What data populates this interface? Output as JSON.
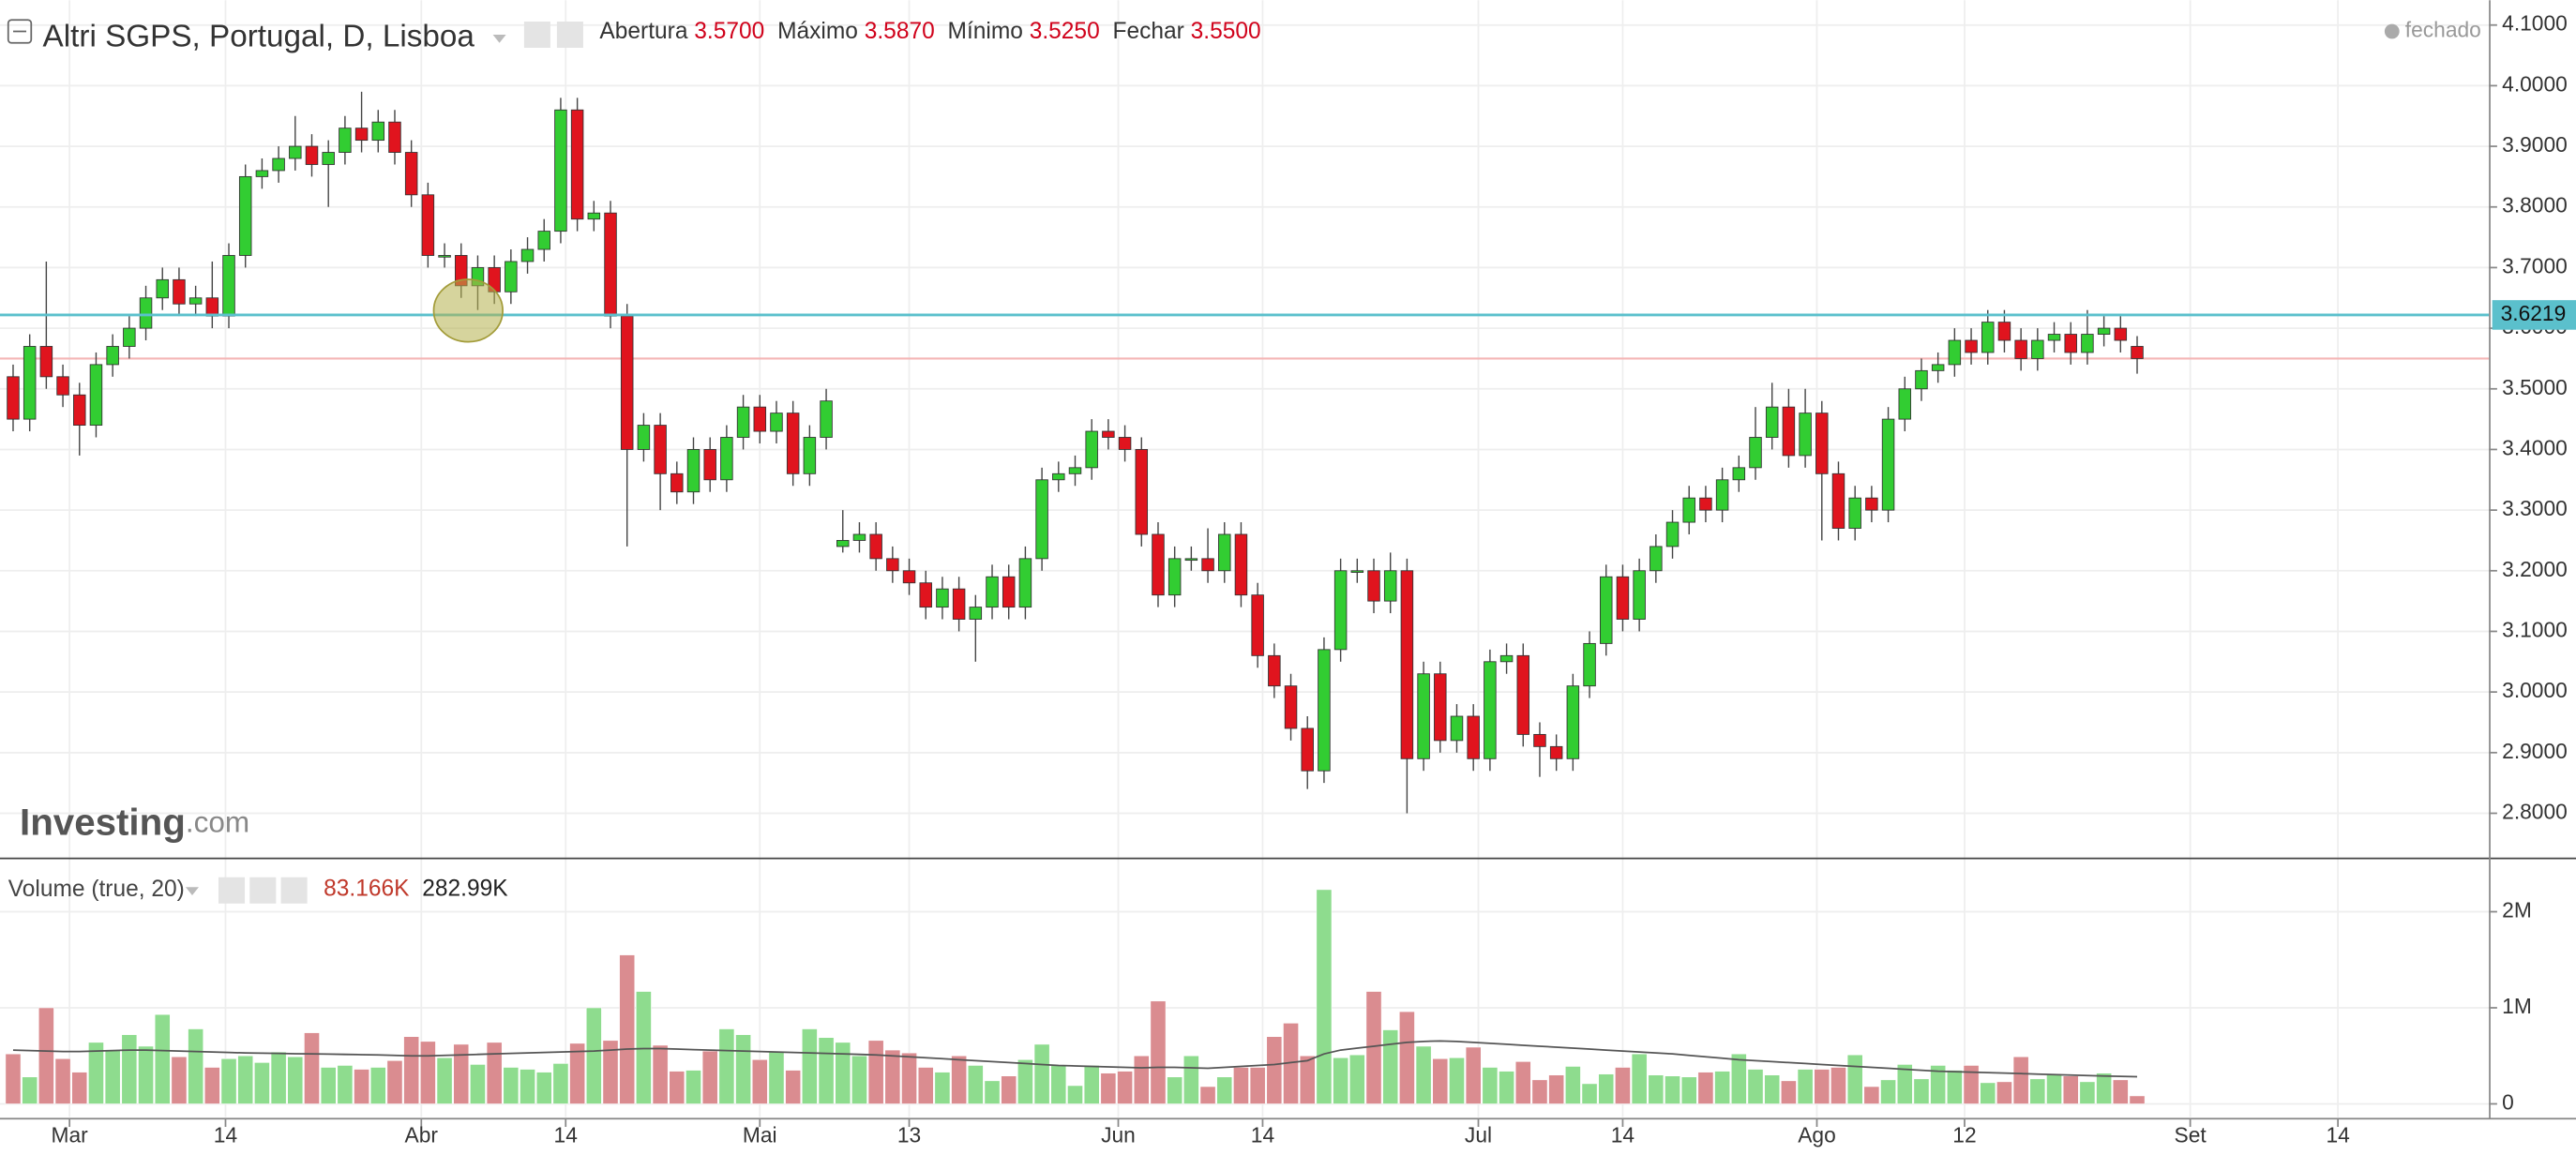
{
  "chart_data": [
    {
      "type": "candlestick",
      "title": "Altri SGPS, Portugal, D, Lisboa",
      "ohlc_labels": [
        "Abertura",
        "Máximo",
        "Mínimo",
        "Fechar"
      ],
      "ohlc_printed": [
        "3.5700",
        "3.5870",
        "3.5250",
        "3.5500"
      ],
      "status": "fechado",
      "watermark": [
        "Investing",
        ".com"
      ],
      "up_color": "#32cd32",
      "down_color": "#e0141e",
      "open": [
        3.52,
        3.45,
        3.57,
        3.52,
        3.49,
        3.44,
        3.54,
        3.57,
        3.6,
        3.65,
        3.68,
        3.64,
        3.65,
        3.62,
        3.72,
        3.85,
        3.86,
        3.88,
        3.9,
        3.87,
        3.89,
        3.93,
        3.91,
        3.94,
        3.89,
        3.82,
        3.72,
        3.72,
        3.67,
        3.7,
        3.66,
        3.71,
        3.73,
        3.76,
        3.96,
        3.78,
        3.79,
        3.62,
        3.4,
        3.44,
        3.36,
        3.33,
        3.4,
        3.35,
        3.42,
        3.47,
        3.43,
        3.46,
        3.36,
        3.42,
        3.24,
        3.25,
        3.26,
        3.22,
        3.2,
        3.18,
        3.14,
        3.17,
        3.12,
        3.14,
        3.19,
        3.14,
        3.22,
        3.35,
        3.36,
        3.37,
        3.43,
        3.42,
        3.4,
        3.26,
        3.16,
        3.22,
        3.22,
        3.2,
        3.26,
        3.16,
        3.06,
        3.01,
        2.94,
        2.87,
        3.07,
        3.2,
        3.2,
        3.15,
        3.2,
        2.89,
        3.03,
        2.92,
        2.96,
        2.89,
        3.05,
        3.06,
        2.93,
        2.91,
        2.89,
        3.01,
        3.08,
        3.19,
        3.12,
        3.2,
        3.24,
        3.28,
        3.32,
        3.3,
        3.35,
        3.37,
        3.42,
        3.47,
        3.39,
        3.46,
        3.36,
        3.27,
        3.32,
        3.3,
        3.45,
        3.5,
        3.53,
        3.54,
        3.58,
        3.56,
        3.61,
        3.58,
        3.55,
        3.58,
        3.59,
        3.56,
        3.59,
        3.6,
        3.57
      ],
      "high": [
        3.54,
        3.59,
        3.71,
        3.54,
        3.51,
        3.56,
        3.59,
        3.62,
        3.67,
        3.7,
        3.7,
        3.67,
        3.71,
        3.74,
        3.87,
        3.88,
        3.9,
        3.95,
        3.92,
        3.91,
        3.95,
        3.99,
        3.96,
        3.96,
        3.91,
        3.84,
        3.74,
        3.74,
        3.72,
        3.72,
        3.73,
        3.75,
        3.78,
        3.98,
        3.98,
        3.81,
        3.81,
        3.64,
        3.46,
        3.46,
        3.38,
        3.42,
        3.42,
        3.44,
        3.49,
        3.49,
        3.48,
        3.48,
        3.44,
        3.5,
        3.3,
        3.28,
        3.28,
        3.24,
        3.22,
        3.2,
        3.19,
        3.19,
        3.16,
        3.21,
        3.21,
        3.24,
        3.37,
        3.38,
        3.39,
        3.45,
        3.45,
        3.44,
        3.42,
        3.28,
        3.24,
        3.24,
        3.27,
        3.28,
        3.28,
        3.18,
        3.08,
        3.03,
        2.96,
        3.09,
        3.22,
        3.22,
        3.22,
        3.23,
        3.22,
        3.05,
        3.05,
        2.98,
        2.98,
        3.07,
        3.08,
        3.08,
        2.95,
        2.93,
        3.03,
        3.1,
        3.21,
        3.21,
        3.22,
        3.26,
        3.3,
        3.34,
        3.34,
        3.37,
        3.39,
        3.47,
        3.51,
        3.5,
        3.5,
        3.48,
        3.38,
        3.34,
        3.34,
        3.47,
        3.52,
        3.55,
        3.56,
        3.6,
        3.6,
        3.63,
        3.63,
        3.6,
        3.6,
        3.61,
        3.61,
        3.63,
        3.62,
        3.62,
        3.587
      ],
      "low": [
        3.43,
        3.43,
        3.5,
        3.47,
        3.39,
        3.42,
        3.52,
        3.55,
        3.58,
        3.63,
        3.62,
        3.62,
        3.6,
        3.6,
        3.7,
        3.83,
        3.84,
        3.86,
        3.85,
        3.8,
        3.87,
        3.89,
        3.89,
        3.87,
        3.8,
        3.7,
        3.7,
        3.65,
        3.63,
        3.64,
        3.64,
        3.69,
        3.71,
        3.74,
        3.76,
        3.76,
        3.6,
        3.24,
        3.38,
        3.3,
        3.31,
        3.31,
        3.33,
        3.33,
        3.4,
        3.41,
        3.41,
        3.34,
        3.34,
        3.4,
        3.23,
        3.23,
        3.2,
        3.18,
        3.16,
        3.12,
        3.12,
        3.1,
        3.05,
        3.12,
        3.12,
        3.12,
        3.2,
        3.33,
        3.34,
        3.35,
        3.4,
        3.38,
        3.24,
        3.14,
        3.14,
        3.2,
        3.18,
        3.18,
        3.14,
        3.04,
        2.99,
        2.92,
        2.84,
        2.85,
        3.05,
        3.18,
        3.13,
        3.13,
        2.8,
        2.87,
        2.9,
        2.9,
        2.87,
        2.87,
        3.03,
        2.91,
        2.86,
        2.87,
        2.87,
        2.99,
        3.06,
        3.1,
        3.1,
        3.18,
        3.22,
        3.26,
        3.28,
        3.28,
        3.33,
        3.35,
        3.4,
        3.37,
        3.37,
        3.25,
        3.25,
        3.25,
        3.28,
        3.28,
        3.43,
        3.48,
        3.51,
        3.52,
        3.54,
        3.54,
        3.56,
        3.53,
        3.53,
        3.56,
        3.54,
        3.54,
        3.57,
        3.56,
        3.525
      ],
      "close": [
        3.45,
        3.57,
        3.52,
        3.49,
        3.44,
        3.54,
        3.57,
        3.6,
        3.65,
        3.68,
        3.64,
        3.65,
        3.62,
        3.72,
        3.85,
        3.86,
        3.88,
        3.9,
        3.87,
        3.89,
        3.93,
        3.91,
        3.94,
        3.89,
        3.82,
        3.72,
        3.72,
        3.67,
        3.7,
        3.66,
        3.71,
        3.73,
        3.76,
        3.96,
        3.78,
        3.79,
        3.62,
        3.4,
        3.44,
        3.36,
        3.33,
        3.4,
        3.35,
        3.42,
        3.47,
        3.43,
        3.46,
        3.36,
        3.42,
        3.48,
        3.25,
        3.26,
        3.22,
        3.2,
        3.18,
        3.14,
        3.17,
        3.12,
        3.14,
        3.19,
        3.14,
        3.22,
        3.35,
        3.36,
        3.37,
        3.43,
        3.42,
        3.4,
        3.26,
        3.16,
        3.22,
        3.22,
        3.2,
        3.26,
        3.16,
        3.06,
        3.01,
        2.94,
        2.87,
        3.07,
        3.2,
        3.2,
        3.15,
        3.2,
        2.89,
        3.03,
        2.92,
        2.96,
        2.89,
        3.05,
        3.06,
        2.93,
        2.91,
        2.89,
        3.01,
        3.08,
        3.19,
        3.12,
        3.2,
        3.24,
        3.28,
        3.32,
        3.3,
        3.35,
        3.37,
        3.42,
        3.47,
        3.39,
        3.46,
        3.36,
        3.27,
        3.32,
        3.3,
        3.45,
        3.5,
        3.53,
        3.54,
        3.58,
        3.56,
        3.61,
        3.58,
        3.55,
        3.58,
        3.59,
        3.56,
        3.59,
        3.6,
        3.58,
        3.55
      ],
      "ylim": [
        2.727,
        4.141
      ],
      "yticks": [
        {
          "value": 2.8,
          "label": "2.8000"
        },
        {
          "value": 2.9,
          "label": "2.9000"
        },
        {
          "value": 3.0,
          "label": "3.0000"
        },
        {
          "value": 3.1,
          "label": "3.1000"
        },
        {
          "value": 3.2,
          "label": "3.2000"
        },
        {
          "value": 3.3,
          "label": "3.3000"
        },
        {
          "value": 3.4,
          "label": "3.4000"
        },
        {
          "value": 3.5,
          "label": "3.5000"
        },
        {
          "value": 3.6,
          "label": "3.6000"
        },
        {
          "value": 3.7,
          "label": "3.7000"
        },
        {
          "value": 3.8,
          "label": "3.8000"
        },
        {
          "value": 3.9,
          "label": "3.9000"
        },
        {
          "value": 4.0,
          "label": "4.0000"
        },
        {
          "value": 4.1,
          "label": "4.1000"
        }
      ],
      "price_line": {
        "value": 3.6219,
        "label": "3.6219",
        "color": "#5bc0cc"
      },
      "close_line": {
        "value": 3.55,
        "color": "#f4b6b6"
      },
      "grid": true
    },
    {
      "type": "bar",
      "title": "Volume (true, 20)",
      "printed_values": [
        "83.166K",
        "282.99K"
      ],
      "up_color": "#8edc8e",
      "down_color": "#da8c90",
      "ma_color": "#555555",
      "values": [
        520000,
        280000,
        1000000,
        470000,
        330000,
        640000,
        560000,
        720000,
        600000,
        930000,
        490000,
        780000,
        380000,
        470000,
        500000,
        430000,
        540000,
        490000,
        740000,
        380000,
        400000,
        360000,
        380000,
        450000,
        700000,
        650000,
        480000,
        620000,
        410000,
        640000,
        380000,
        360000,
        330000,
        420000,
        630000,
        1000000,
        660000,
        1550000,
        1170000,
        610000,
        340000,
        350000,
        550000,
        780000,
        720000,
        460000,
        540000,
        350000,
        780000,
        690000,
        640000,
        500000,
        660000,
        560000,
        530000,
        380000,
        330000,
        500000,
        400000,
        240000,
        290000,
        460000,
        620000,
        400000,
        190000,
        400000,
        320000,
        340000,
        500000,
        1070000,
        280000,
        500000,
        180000,
        280000,
        380000,
        380000,
        700000,
        840000,
        500000,
        2230000,
        480000,
        510000,
        1170000,
        770000,
        960000,
        600000,
        470000,
        480000,
        590000,
        380000,
        340000,
        440000,
        250000,
        300000,
        390000,
        210000,
        310000,
        380000,
        520000,
        300000,
        290000,
        280000,
        330000,
        340000,
        520000,
        360000,
        300000,
        240000,
        360000,
        360000,
        380000,
        510000,
        180000,
        250000,
        410000,
        260000,
        400000,
        350000,
        400000,
        220000,
        230000,
        490000,
        260000,
        310000,
        290000,
        230000,
        320000,
        250000,
        83166
      ],
      "ma": [
        560000,
        555000,
        550000,
        545000,
        545000,
        550000,
        555000,
        560000,
        560000,
        555000,
        550000,
        545000,
        540000,
        535000,
        530000,
        528000,
        525000,
        522000,
        520000,
        518000,
        515000,
        512000,
        510000,
        505000,
        500000,
        500000,
        505000,
        510000,
        515000,
        520000,
        525000,
        530000,
        535000,
        540000,
        545000,
        550000,
        560000,
        570000,
        575000,
        575000,
        570000,
        565000,
        560000,
        555000,
        550000,
        545000,
        540000,
        535000,
        530000,
        525000,
        520000,
        515000,
        510000,
        500000,
        490000,
        480000,
        470000,
        460000,
        450000,
        440000,
        430000,
        420000,
        410000,
        400000,
        395000,
        390000,
        385000,
        380000,
        375000,
        380000,
        380000,
        375000,
        370000,
        380000,
        390000,
        400000,
        410000,
        430000,
        450000,
        520000,
        560000,
        580000,
        600000,
        620000,
        640000,
        650000,
        655000,
        650000,
        640000,
        630000,
        620000,
        610000,
        600000,
        590000,
        580000,
        570000,
        560000,
        550000,
        540000,
        530000,
        520000,
        505000,
        490000,
        475000,
        460000,
        450000,
        440000,
        430000,
        420000,
        410000,
        400000,
        390000,
        380000,
        370000,
        360000,
        350000,
        340000,
        335000,
        330000,
        325000,
        320000,
        315000,
        310000,
        305000,
        300000,
        295000,
        290000,
        286000,
        282990
      ],
      "ylim": [
        -137000,
        2547000
      ],
      "yticks": [
        0,
        {
          "value": 1000000,
          "label": "1M"
        },
        {
          "value": 2000000,
          "label": "2M"
        }
      ],
      "xlim": [
        -0.79,
        149.2
      ],
      "xticks": [
        {
          "value": 3.4,
          "label": "Mar"
        },
        {
          "value": 12.8,
          "label": "14"
        },
        {
          "value": 24.6,
          "label": "Abr"
        },
        {
          "value": 33.3,
          "label": "14"
        },
        {
          "value": 45,
          "label": "Mai"
        },
        {
          "value": 54,
          "label": "13"
        },
        {
          "value": 66.6,
          "label": "Jun"
        },
        {
          "value": 75.3,
          "label": "14"
        },
        {
          "value": 88.3,
          "label": "Jul"
        },
        {
          "value": 97,
          "label": "14"
        },
        {
          "value": 108.7,
          "label": "Ago"
        },
        {
          "value": 117.6,
          "label": "12"
        },
        {
          "value": 131.2,
          "label": "Set"
        },
        {
          "value": 140.1,
          "label": "14"
        }
      ],
      "grid": true
    }
  ]
}
